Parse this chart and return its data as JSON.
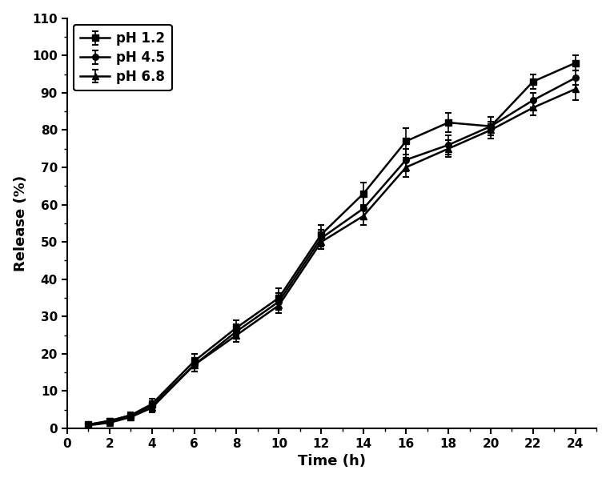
{
  "time": [
    1,
    2,
    3,
    4,
    6,
    8,
    10,
    12,
    14,
    16,
    18,
    20,
    22,
    24
  ],
  "ph12_y": [
    1.0,
    2.0,
    3.5,
    6.5,
    18.0,
    27.0,
    35.0,
    52.0,
    63.0,
    77.0,
    82.0,
    81.0,
    93.0,
    98.0
  ],
  "ph12_err": [
    0.5,
    0.5,
    0.8,
    1.5,
    2.0,
    2.0,
    2.5,
    2.5,
    3.0,
    3.5,
    2.5,
    2.5,
    2.0,
    2.0
  ],
  "ph45_y": [
    1.0,
    2.0,
    3.5,
    6.0,
    17.0,
    26.0,
    34.0,
    51.0,
    59.0,
    72.0,
    76.0,
    81.0,
    88.0,
    94.0
  ],
  "ph45_err": [
    0.5,
    0.5,
    0.8,
    1.2,
    1.8,
    1.8,
    2.2,
    2.2,
    3.0,
    3.0,
    2.5,
    2.5,
    2.0,
    2.0
  ],
  "ph68_y": [
    0.8,
    1.5,
    3.0,
    5.5,
    17.0,
    25.0,
    33.0,
    50.0,
    57.0,
    70.0,
    75.0,
    80.0,
    86.0,
    91.0
  ],
  "ph68_err": [
    0.5,
    0.5,
    0.8,
    1.2,
    1.8,
    1.8,
    2.0,
    2.0,
    2.5,
    2.5,
    2.2,
    2.2,
    2.0,
    3.0
  ],
  "xlabel": "Time (h)",
  "ylabel": "Release (%)",
  "xlim": [
    0,
    25
  ],
  "ylim": [
    0,
    110
  ],
  "xticks": [
    0,
    2,
    4,
    6,
    8,
    10,
    12,
    14,
    16,
    18,
    20,
    22,
    24
  ],
  "yticks": [
    0,
    10,
    20,
    30,
    40,
    50,
    60,
    70,
    80,
    90,
    100,
    110
  ],
  "legend_labels": [
    "pH 1.2",
    "pH 4.5",
    "pH 6.8"
  ],
  "line_color": "#000000",
  "bg_color": "#ffffff",
  "figsize": [
    7.62,
    6.02
  ],
  "dpi": 100
}
